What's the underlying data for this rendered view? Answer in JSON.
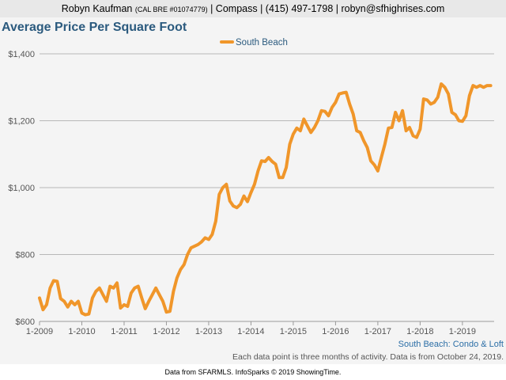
{
  "header": {
    "agent_name": "Robyn Kaufman",
    "license": "(CAL BRE #01074779)",
    "contact": "| Compass | (415) 497-1798 | robyn@sfhighrises.com"
  },
  "colors": {
    "line": "#f0962a",
    "title": "#2b5a7e",
    "grid": "#b8b8b8",
    "source_label": "#2b6ea6"
  },
  "chart_data": {
    "type": "line",
    "title": "Average Price Per Square Foot",
    "xlabel": "",
    "ylabel": "",
    "ylim": [
      600,
      1400
    ],
    "yticks": [
      600,
      800,
      1000,
      1200,
      1400
    ],
    "ytick_labels": [
      "$600",
      "$800",
      "$1,000",
      "$1,200",
      "$1,400"
    ],
    "xlim": [
      2009.0,
      2019.75
    ],
    "xticks": [
      2009,
      2010,
      2011,
      2012,
      2013,
      2014,
      2015,
      2016,
      2017,
      2018,
      2019
    ],
    "xtick_labels": [
      "1-2009",
      "1-2010",
      "1-2011",
      "1-2012",
      "1-2013",
      "1-2014",
      "1-2015",
      "1-2016",
      "1-2017",
      "1-2018",
      "1-2019"
    ],
    "legend": "top-center",
    "series": [
      {
        "name": "South Beach",
        "x": [
          2009.0,
          2009.083,
          2009.167,
          2009.25,
          2009.333,
          2009.417,
          2009.5,
          2009.583,
          2009.667,
          2009.75,
          2009.833,
          2009.917,
          2010.0,
          2010.083,
          2010.167,
          2010.25,
          2010.333,
          2010.417,
          2010.5,
          2010.583,
          2010.667,
          2010.75,
          2010.833,
          2010.917,
          2011.0,
          2011.083,
          2011.167,
          2011.25,
          2011.333,
          2011.417,
          2011.5,
          2011.583,
          2011.667,
          2011.75,
          2011.833,
          2011.917,
          2012.0,
          2012.083,
          2012.167,
          2012.25,
          2012.333,
          2012.417,
          2012.5,
          2012.583,
          2012.667,
          2012.75,
          2012.833,
          2012.917,
          2013.0,
          2013.083,
          2013.167,
          2013.25,
          2013.333,
          2013.417,
          2013.5,
          2013.583,
          2013.667,
          2013.75,
          2013.833,
          2013.917,
          2014.0,
          2014.083,
          2014.167,
          2014.25,
          2014.333,
          2014.417,
          2014.5,
          2014.583,
          2014.667,
          2014.75,
          2014.833,
          2014.917,
          2015.0,
          2015.083,
          2015.167,
          2015.25,
          2015.333,
          2015.417,
          2015.5,
          2015.583,
          2015.667,
          2015.75,
          2015.833,
          2015.917,
          2016.0,
          2016.083,
          2016.167,
          2016.25,
          2016.333,
          2016.417,
          2016.5,
          2016.583,
          2016.667,
          2016.75,
          2016.833,
          2016.917,
          2017.0,
          2017.083,
          2017.167,
          2017.25,
          2017.333,
          2017.417,
          2017.5,
          2017.583,
          2017.667,
          2017.75,
          2017.833,
          2017.917,
          2018.0,
          2018.083,
          2018.167,
          2018.25,
          2018.333,
          2018.417,
          2018.5,
          2018.583,
          2018.667,
          2018.75,
          2018.833,
          2018.917,
          2019.0,
          2019.083,
          2019.167,
          2019.25,
          2019.333,
          2019.417,
          2019.5,
          2019.583,
          2019.667
        ],
        "values": [
          670,
          635,
          650,
          700,
          722,
          720,
          668,
          660,
          643,
          660,
          650,
          660,
          625,
          620,
          622,
          670,
          690,
          700,
          680,
          660,
          705,
          700,
          715,
          640,
          650,
          645,
          685,
          700,
          705,
          670,
          638,
          660,
          680,
          700,
          680,
          660,
          628,
          630,
          690,
          730,
          755,
          770,
          800,
          820,
          825,
          830,
          838,
          850,
          845,
          860,
          900,
          980,
          1000,
          1010,
          960,
          945,
          940,
          950,
          975,
          958,
          985,
          1010,
          1050,
          1080,
          1078,
          1090,
          1078,
          1070,
          1030,
          1030,
          1060,
          1130,
          1160,
          1178,
          1170,
          1205,
          1185,
          1165,
          1180,
          1200,
          1230,
          1228,
          1215,
          1240,
          1255,
          1280,
          1283,
          1285,
          1250,
          1220,
          1170,
          1165,
          1140,
          1120,
          1080,
          1068,
          1050,
          1090,
          1130,
          1178,
          1180,
          1225,
          1200,
          1230,
          1170,
          1180,
          1155,
          1150,
          1175,
          1265,
          1262,
          1250,
          1255,
          1270,
          1310,
          1300,
          1280,
          1225,
          1218,
          1200,
          1198,
          1215,
          1275,
          1305,
          1300,
          1305,
          1300,
          1305,
          1305
        ]
      }
    ],
    "source_label": "South Beach: Condo & Loft",
    "note": "Each data point is three months of activity. Data is from October 24, 2019."
  },
  "credit": "Data from SFARMLS. InfoSparks © 2019 ShowingTime."
}
